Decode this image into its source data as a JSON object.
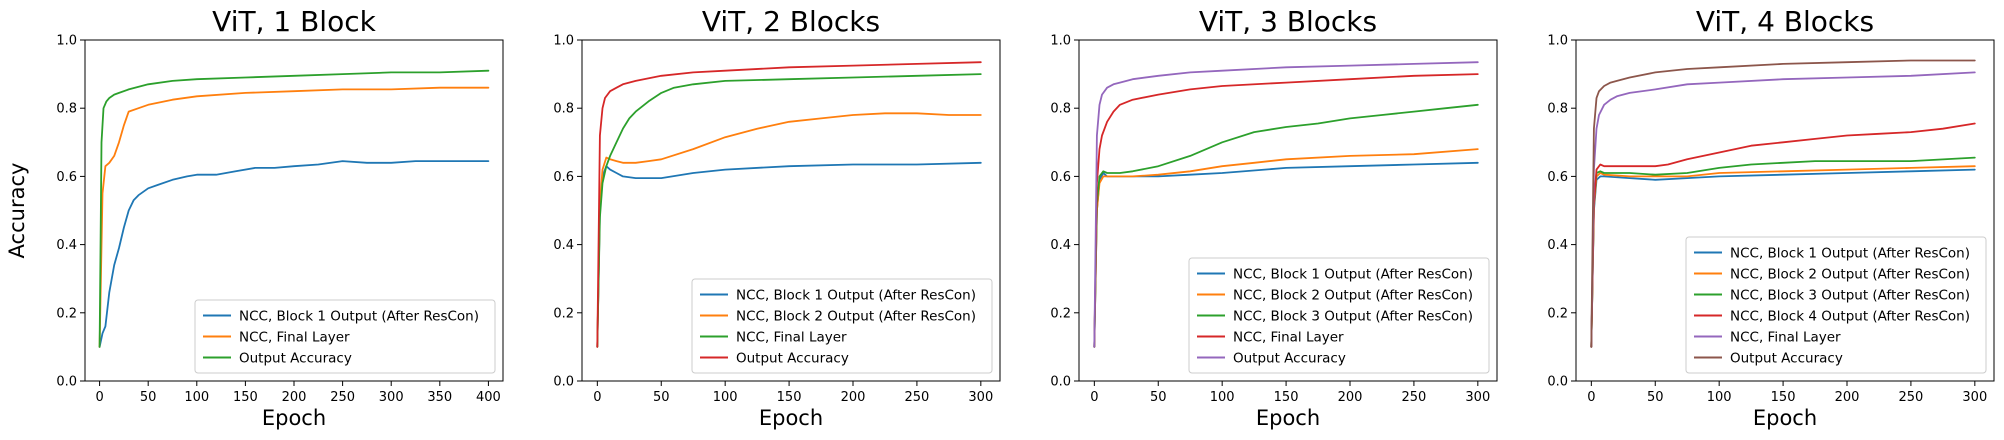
{
  "chart_data": [
    {
      "type": "line",
      "title": "ViT, 1 Block",
      "xlabel": "Epoch",
      "ylabel": "Accuracy",
      "xlim": [
        -15,
        415
      ],
      "ylim": [
        0,
        1
      ],
      "xticks": [
        0,
        50,
        100,
        150,
        200,
        250,
        300,
        350,
        400
      ],
      "yticks": [
        0.0,
        0.2,
        0.4,
        0.6,
        0.8,
        1.0
      ],
      "legend": "lower-right",
      "series": [
        {
          "name": "NCC, Block 1 Output (After ResCon)",
          "color": "#1f77b4",
          "x": [
            0,
            3,
            6,
            10,
            15,
            20,
            25,
            30,
            35,
            40,
            50,
            60,
            75,
            90,
            100,
            120,
            140,
            160,
            180,
            200,
            225,
            250,
            275,
            300,
            325,
            350,
            375,
            400
          ],
          "y": [
            0.1,
            0.14,
            0.16,
            0.26,
            0.34,
            0.39,
            0.45,
            0.5,
            0.53,
            0.545,
            0.565,
            0.575,
            0.59,
            0.6,
            0.605,
            0.605,
            0.615,
            0.625,
            0.625,
            0.63,
            0.635,
            0.645,
            0.64,
            0.64,
            0.645,
            0.645,
            0.645,
            0.645
          ]
        },
        {
          "name": "NCC, Final Layer",
          "color": "#ff7f0e",
          "x": [
            0,
            3,
            6,
            10,
            15,
            20,
            25,
            30,
            40,
            50,
            75,
            100,
            150,
            200,
            250,
            300,
            350,
            400
          ],
          "y": [
            0.1,
            0.55,
            0.63,
            0.64,
            0.66,
            0.7,
            0.75,
            0.79,
            0.8,
            0.81,
            0.825,
            0.835,
            0.845,
            0.85,
            0.855,
            0.855,
            0.86,
            0.86
          ]
        },
        {
          "name": "Output Accuracy",
          "color": "#2ca02c",
          "x": [
            0,
            2,
            4,
            7,
            10,
            15,
            20,
            30,
            50,
            75,
            100,
            150,
            200,
            250,
            300,
            350,
            400
          ],
          "y": [
            0.1,
            0.7,
            0.8,
            0.82,
            0.83,
            0.84,
            0.845,
            0.855,
            0.87,
            0.88,
            0.885,
            0.89,
            0.895,
            0.9,
            0.905,
            0.905,
            0.91
          ]
        }
      ]
    },
    {
      "type": "line",
      "title": "ViT, 2 Blocks",
      "xlabel": "Epoch",
      "ylabel": "",
      "xlim": [
        -12,
        315
      ],
      "ylim": [
        0,
        1
      ],
      "xticks": [
        0,
        50,
        100,
        150,
        200,
        250,
        300
      ],
      "yticks": [
        0.0,
        0.2,
        0.4,
        0.6,
        0.8,
        1.0
      ],
      "legend": "lower-right",
      "series": [
        {
          "name": "NCC, Block 1 Output (After ResCon)",
          "color": "#1f77b4",
          "x": [
            0,
            2,
            4,
            7,
            10,
            15,
            20,
            30,
            40,
            50,
            75,
            100,
            150,
            200,
            250,
            300
          ],
          "y": [
            0.1,
            0.5,
            0.6,
            0.63,
            0.62,
            0.61,
            0.6,
            0.595,
            0.595,
            0.595,
            0.61,
            0.62,
            0.63,
            0.635,
            0.635,
            0.64
          ]
        },
        {
          "name": "NCC, Block 2 Output (After ResCon)",
          "color": "#ff7f0e",
          "x": [
            0,
            2,
            4,
            7,
            10,
            15,
            20,
            30,
            40,
            50,
            75,
            100,
            125,
            150,
            175,
            200,
            225,
            250,
            275,
            300
          ],
          "y": [
            0.1,
            0.52,
            0.62,
            0.655,
            0.65,
            0.645,
            0.64,
            0.64,
            0.645,
            0.65,
            0.68,
            0.715,
            0.74,
            0.76,
            0.77,
            0.78,
            0.785,
            0.785,
            0.78,
            0.78
          ]
        },
        {
          "name": "NCC, Final Layer",
          "color": "#2ca02c",
          "x": [
            0,
            2,
            4,
            7,
            10,
            15,
            20,
            25,
            30,
            40,
            50,
            60,
            75,
            100,
            150,
            200,
            250,
            300
          ],
          "y": [
            0.1,
            0.48,
            0.58,
            0.63,
            0.66,
            0.7,
            0.74,
            0.77,
            0.79,
            0.82,
            0.845,
            0.86,
            0.87,
            0.88,
            0.885,
            0.89,
            0.895,
            0.9
          ]
        },
        {
          "name": "Output Accuracy",
          "color": "#d62728",
          "x": [
            0,
            2,
            4,
            6,
            10,
            15,
            20,
            30,
            50,
            75,
            100,
            150,
            200,
            250,
            300
          ],
          "y": [
            0.1,
            0.72,
            0.8,
            0.83,
            0.85,
            0.86,
            0.87,
            0.88,
            0.895,
            0.905,
            0.91,
            0.92,
            0.925,
            0.93,
            0.935
          ]
        }
      ]
    },
    {
      "type": "line",
      "title": "ViT, 3 Blocks",
      "xlabel": "Epoch",
      "ylabel": "",
      "xlim": [
        -12,
        315
      ],
      "ylim": [
        0,
        1
      ],
      "xticks": [
        0,
        50,
        100,
        150,
        200,
        250,
        300
      ],
      "yticks": [
        0.0,
        0.2,
        0.4,
        0.6,
        0.8,
        1.0
      ],
      "legend": "lower-right",
      "series": [
        {
          "name": "NCC, Block 1 Output (After ResCon)",
          "color": "#1f77b4",
          "x": [
            0,
            2,
            4,
            7,
            10,
            20,
            30,
            50,
            75,
            100,
            150,
            200,
            250,
            300
          ],
          "y": [
            0.1,
            0.5,
            0.59,
            0.61,
            0.6,
            0.6,
            0.6,
            0.6,
            0.605,
            0.61,
            0.625,
            0.63,
            0.635,
            0.64
          ]
        },
        {
          "name": "NCC, Block 2 Output (After ResCon)",
          "color": "#ff7f0e",
          "x": [
            0,
            2,
            4,
            7,
            10,
            20,
            30,
            50,
            75,
            100,
            125,
            150,
            200,
            250,
            300
          ],
          "y": [
            0.1,
            0.5,
            0.58,
            0.6,
            0.6,
            0.6,
            0.6,
            0.605,
            0.615,
            0.63,
            0.64,
            0.65,
            0.66,
            0.665,
            0.68
          ]
        },
        {
          "name": "NCC, Block 3 Output (After ResCon)",
          "color": "#2ca02c",
          "x": [
            0,
            2,
            4,
            7,
            10,
            20,
            30,
            50,
            75,
            100,
            125,
            150,
            175,
            200,
            225,
            250,
            275,
            300
          ],
          "y": [
            0.1,
            0.52,
            0.6,
            0.615,
            0.61,
            0.61,
            0.615,
            0.63,
            0.66,
            0.7,
            0.73,
            0.745,
            0.755,
            0.77,
            0.78,
            0.79,
            0.8,
            0.81
          ]
        },
        {
          "name": "NCC, Final Layer",
          "color": "#d62728",
          "x": [
            0,
            2,
            4,
            6,
            10,
            15,
            20,
            30,
            50,
            75,
            100,
            150,
            200,
            250,
            300
          ],
          "y": [
            0.1,
            0.58,
            0.68,
            0.72,
            0.76,
            0.79,
            0.81,
            0.825,
            0.84,
            0.855,
            0.865,
            0.875,
            0.885,
            0.895,
            0.9
          ]
        },
        {
          "name": "Output Accuracy",
          "color": "#9467bd",
          "x": [
            0,
            2,
            4,
            6,
            10,
            15,
            20,
            30,
            50,
            75,
            100,
            150,
            200,
            250,
            300
          ],
          "y": [
            0.1,
            0.72,
            0.81,
            0.84,
            0.86,
            0.87,
            0.875,
            0.885,
            0.895,
            0.905,
            0.91,
            0.92,
            0.925,
            0.93,
            0.935
          ]
        }
      ]
    },
    {
      "type": "line",
      "title": "ViT, 4 Blocks",
      "xlabel": "Epoch",
      "ylabel": "",
      "xlim": [
        -12,
        315
      ],
      "ylim": [
        0,
        1
      ],
      "xticks": [
        0,
        50,
        100,
        150,
        200,
        250,
        300
      ],
      "yticks": [
        0.0,
        0.2,
        0.4,
        0.6,
        0.8,
        1.0
      ],
      "legend": "lower-right",
      "series": [
        {
          "name": "NCC, Block 1 Output (After ResCon)",
          "color": "#1f77b4",
          "x": [
            0,
            2,
            4,
            7,
            10,
            30,
            50,
            75,
            100,
            150,
            200,
            250,
            300
          ],
          "y": [
            0.1,
            0.5,
            0.59,
            0.6,
            0.6,
            0.595,
            0.59,
            0.595,
            0.6,
            0.605,
            0.61,
            0.615,
            0.62
          ]
        },
        {
          "name": "NCC, Block 2 Output (After ResCon)",
          "color": "#ff7f0e",
          "x": [
            0,
            2,
            4,
            7,
            10,
            30,
            50,
            75,
            100,
            150,
            200,
            250,
            300
          ],
          "y": [
            0.1,
            0.51,
            0.6,
            0.61,
            0.605,
            0.6,
            0.6,
            0.6,
            0.61,
            0.615,
            0.62,
            0.625,
            0.63
          ]
        },
        {
          "name": "NCC, Block 3 Output (After ResCon)",
          "color": "#2ca02c",
          "x": [
            0,
            2,
            4,
            7,
            10,
            30,
            50,
            75,
            100,
            125,
            150,
            175,
            200,
            250,
            300
          ],
          "y": [
            0.1,
            0.52,
            0.61,
            0.615,
            0.61,
            0.61,
            0.605,
            0.61,
            0.625,
            0.635,
            0.64,
            0.645,
            0.645,
            0.645,
            0.655
          ]
        },
        {
          "name": "NCC, Block 4 Output (After ResCon)",
          "color": "#d62728",
          "x": [
            0,
            2,
            4,
            7,
            10,
            30,
            50,
            60,
            75,
            100,
            125,
            150,
            175,
            200,
            225,
            250,
            275,
            300
          ],
          "y": [
            0.1,
            0.52,
            0.62,
            0.635,
            0.63,
            0.63,
            0.63,
            0.635,
            0.65,
            0.67,
            0.69,
            0.7,
            0.71,
            0.72,
            0.725,
            0.73,
            0.74,
            0.755
          ]
        },
        {
          "name": "NCC, Final Layer",
          "color": "#9467bd",
          "x": [
            0,
            2,
            4,
            6,
            10,
            15,
            20,
            30,
            50,
            75,
            100,
            150,
            200,
            250,
            300
          ],
          "y": [
            0.1,
            0.62,
            0.74,
            0.78,
            0.81,
            0.825,
            0.835,
            0.845,
            0.855,
            0.87,
            0.875,
            0.885,
            0.89,
            0.895,
            0.905
          ]
        },
        {
          "name": "Output Accuracy",
          "color": "#8c564b",
          "x": [
            0,
            2,
            4,
            6,
            10,
            15,
            20,
            30,
            50,
            75,
            100,
            150,
            200,
            250,
            300
          ],
          "y": [
            0.1,
            0.74,
            0.83,
            0.85,
            0.865,
            0.875,
            0.88,
            0.89,
            0.905,
            0.915,
            0.92,
            0.93,
            0.935,
            0.94,
            0.94
          ]
        }
      ]
    }
  ]
}
